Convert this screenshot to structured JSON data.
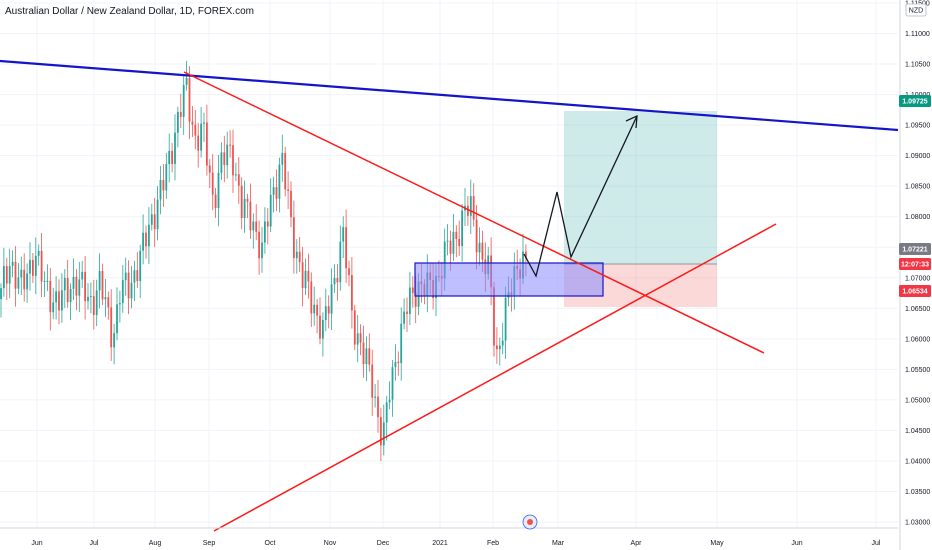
{
  "chart_data": {
    "type": "candlestick",
    "title": "Australian Dollar / New Zealand Dollar, 1D, FOREX.com",
    "currency": "NZD",
    "x_ticks": [
      "Jun",
      "Jul",
      "Aug",
      "Sep",
      "Oct",
      "Nov",
      "Dec",
      "2021",
      "Feb",
      "Mar",
      "Apr",
      "May",
      "Jun",
      "Jul"
    ],
    "y_ticks": [
      "1.11500",
      "1.11000",
      "1.10500",
      "1.10000",
      "1.09500",
      "1.09000",
      "1.08500",
      "1.08000",
      "1.07500",
      "1.07000",
      "1.06500",
      "1.06000",
      "1.05500",
      "1.05000",
      "1.04500",
      "1.04000",
      "1.03500",
      "1.03000"
    ],
    "ylim": [
      1.028,
      1.1165
    ],
    "price_badges": [
      {
        "label": "1.09725",
        "color": "#089981"
      },
      {
        "label": "1.07221",
        "color": "#787b86"
      },
      {
        "label": "12:07:33",
        "color": "#f23645"
      },
      {
        "label": "1.06534",
        "color": "#f23645"
      }
    ],
    "colors": {
      "up": "#26a69a",
      "down": "#ef5350",
      "resistance_line": "#1515c8",
      "trend_lines": "#ff1a1a",
      "profit_zone": "#26a69a",
      "loss_zone": "#ef5350",
      "demand_zone": "#8a8aff"
    },
    "annotations": {
      "resistance_line": "descending blue resistance line",
      "upper_trendline": "descending red trendline from August high",
      "lower_trendline": "ascending red trendline from December low",
      "demand_zone": "blue rectangle support zone",
      "projection": "black zig-zag path with arrow toward 1.097",
      "position": "long position tool with profit and loss zones"
    },
    "grid": true
  }
}
